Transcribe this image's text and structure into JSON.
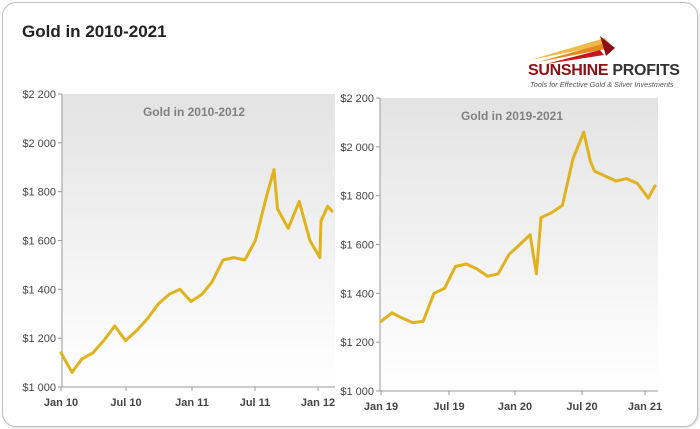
{
  "title": "Gold in 2010-2021",
  "logo": {
    "name_part1": "SUNSHINE",
    "name_part2": " PROFITS",
    "tagline": "Tools for Effective Gold & Silver Investments",
    "colors": [
      "#8b0f14",
      "#c8141b",
      "#e58a1f",
      "#f2b94a"
    ]
  },
  "line_color": "#e0b21e",
  "chart_data": [
    {
      "type": "line",
      "title": "Gold in 2010-2012",
      "xlabel": "",
      "ylabel": "",
      "ylim": [
        1000,
        2200
      ],
      "yticks": [
        1000,
        1200,
        1400,
        1600,
        1800,
        2000,
        2200
      ],
      "ytick_labels": [
        "$1 000",
        "$1 200",
        "$1 400",
        "$1 600",
        "$1 800",
        "$2 000",
        "$2 200"
      ],
      "xticks": [
        "Jan 10",
        "Jul 10",
        "Jan 11",
        "Jul 11",
        "Jan 12"
      ],
      "grid": false,
      "x": [
        "2010-01",
        "2010-02",
        "2010-03",
        "2010-04",
        "2010-05",
        "2010-06",
        "2010-07",
        "2010-08",
        "2010-09",
        "2010-10",
        "2010-11",
        "2010-12",
        "2011-01",
        "2011-02",
        "2011-03",
        "2011-04",
        "2011-05",
        "2011-06",
        "2011-07",
        "2011-08",
        "2011-08-22",
        "2011-09",
        "2011-10",
        "2011-11",
        "2011-12",
        "2011-12-29",
        "2012-01",
        "2012-01-20",
        "2012-02"
      ],
      "series": [
        {
          "values": [
            1140,
            1060,
            1115,
            1140,
            1190,
            1250,
            1190,
            1230,
            1280,
            1340,
            1380,
            1400,
            1350,
            1380,
            1430,
            1520,
            1530,
            1520,
            1600,
            1780,
            1890,
            1730,
            1650,
            1760,
            1600,
            1530,
            1680,
            1740,
            1720
          ]
        }
      ]
    },
    {
      "type": "line",
      "title": "Gold in 2019-2021",
      "xlabel": "",
      "ylabel": "",
      "ylim": [
        1000,
        2200
      ],
      "yticks": [
        1000,
        1200,
        1400,
        1600,
        1800,
        2000,
        2200
      ],
      "ytick_labels": [
        "$1 000",
        "$1 200",
        "$1 400",
        "$1 600",
        "$1 800",
        "$2 000",
        "$2 200"
      ],
      "xticks": [
        "Jan 19",
        "Jul 19",
        "Jan 20",
        "Jul 20",
        "Jan 21"
      ],
      "grid": false,
      "x": [
        "2019-01",
        "2019-02",
        "2019-03",
        "2019-04",
        "2019-05",
        "2019-06",
        "2019-07",
        "2019-08",
        "2019-09",
        "2019-10",
        "2019-11",
        "2019-12",
        "2020-01",
        "2020-02",
        "2020-03",
        "2020-03-19",
        "2020-04",
        "2020-05",
        "2020-06",
        "2020-07",
        "2020-08",
        "2020-08-20",
        "2020-09",
        "2020-10",
        "2020-11",
        "2020-12",
        "2021-01",
        "2021-02",
        "2021-02-20"
      ],
      "series": [
        {
          "values": [
            1285,
            1320,
            1300,
            1280,
            1285,
            1400,
            1420,
            1510,
            1520,
            1500,
            1470,
            1480,
            1560,
            1600,
            1640,
            1480,
            1710,
            1730,
            1760,
            1950,
            2060,
            1940,
            1900,
            1880,
            1860,
            1870,
            1850,
            1790,
            1840
          ]
        }
      ]
    }
  ]
}
